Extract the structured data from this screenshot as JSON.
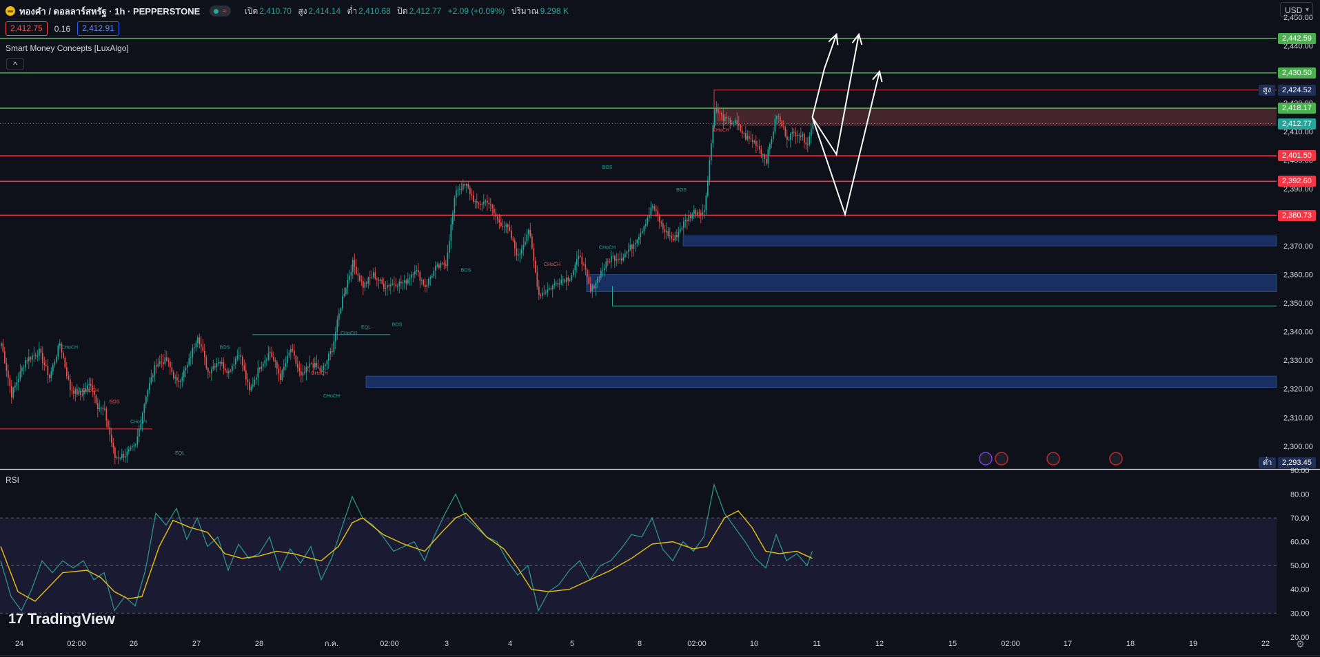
{
  "header": {
    "title": "ทองคำ / ดอลลาร์สหรัฐ · 1h · PEPPERSTONE",
    "open_label": "เปิด",
    "open": "2,410.70",
    "high_label": "สูง",
    "high": "2,414.14",
    "low_label": "ต่ำ",
    "low": "2,410.68",
    "close_label": "ปิด",
    "close": "2,412.77",
    "change": "+2.09 (+0.09%)",
    "volume_label": "ปริมาณ",
    "volume": "9.298 K",
    "wave_glyph": "≈"
  },
  "quotes": {
    "sell": "2,412.75",
    "spread": "0.16",
    "buy": "2,412.91"
  },
  "indicator_name": "Smart Money Concepts [LuxAlgo]",
  "collapse_glyph": "^",
  "rsi_label": "RSI",
  "currency": "USD",
  "brand": {
    "mark": "17",
    "name": "TradingView"
  },
  "colors": {
    "background": "#0f111a",
    "up": "#26a69a",
    "down": "#ef5350",
    "green_level": "#4caf50",
    "red_level": "#f23645",
    "rsi_line": "#2a9d8f",
    "rsi_ma": "#e8c30f",
    "zone_blue": "#1e3a7a"
  },
  "chart_data": [
    {
      "type": "candlestick",
      "title": "",
      "y_axis_ticks": [
        "2,450.00",
        "2,440.00",
        "2,430.00",
        "2,420.00",
        "2,410.00",
        "2,400.00",
        "2,390.00",
        "2,380.00",
        "2,370.00",
        "2,360.00",
        "2,350.00",
        "2,340.00",
        "2,330.00",
        "2,320.00",
        "2,310.00",
        "2,300.00"
      ],
      "y_range": [
        2292,
        2456
      ],
      "x_axis_ticks": [
        "24",
        "02:00",
        "26",
        "27",
        "28",
        "ก.ค.",
        "02:00",
        "3",
        "4",
        "5",
        "8",
        "02:00",
        "10",
        "11",
        "12",
        "15",
        "02:00",
        "17",
        "18",
        "19",
        "22"
      ],
      "key_levels": [
        {
          "price": 2442.59,
          "label": "2,442.59",
          "color": "green"
        },
        {
          "price": 2430.5,
          "label": "2,430.50",
          "color": "green"
        },
        {
          "price": 2418.17,
          "label": "2,418.17",
          "color": "green"
        },
        {
          "price": 2401.5,
          "label": "2,401.50",
          "color": "red"
        },
        {
          "price": 2392.6,
          "label": "2,392.60",
          "color": "red"
        },
        {
          "price": 2380.73,
          "label": "2,380.73",
          "color": "red"
        }
      ],
      "price_tags": {
        "high_label": "สูง",
        "high": "2,424.52",
        "last": "2,412.77",
        "low_label": "ต่ำ",
        "low": "2,293.45"
      },
      "structure_labels": [
        "CHoCH",
        "EQL",
        "CHoCH",
        "BOS",
        "CHoCH",
        "EQL",
        "BOS",
        "CHoCH",
        "CHoCH",
        "BOS",
        "CHoCH",
        "EQL",
        "BOS",
        "CHoCH",
        "CHoCH",
        "BOS",
        "BOS",
        "CHoCH"
      ],
      "demand_zones": [
        [
          2370,
          2373.5
        ],
        [
          2354,
          2360
        ],
        [
          2320.5,
          2324.5
        ]
      ],
      "pivots": [
        [
          0,
          2336
        ],
        [
          6,
          2318
        ],
        [
          14,
          2330
        ],
        [
          22,
          2333
        ],
        [
          28,
          2324
        ],
        [
          34,
          2336
        ],
        [
          40,
          2320
        ],
        [
          46,
          2318
        ],
        [
          52,
          2322
        ],
        [
          56,
          2314
        ],
        [
          60,
          2312
        ],
        [
          66,
          2296
        ],
        [
          72,
          2297
        ],
        [
          78,
          2300
        ],
        [
          84,
          2318
        ],
        [
          90,
          2329
        ],
        [
          96,
          2330
        ],
        [
          102,
          2322
        ],
        [
          108,
          2328
        ],
        [
          114,
          2339
        ],
        [
          120,
          2326
        ],
        [
          126,
          2330
        ],
        [
          132,
          2326
        ],
        [
          138,
          2333
        ],
        [
          144,
          2319
        ],
        [
          150,
          2328
        ],
        [
          156,
          2333
        ],
        [
          162,
          2324
        ],
        [
          168,
          2334
        ],
        [
          174,
          2324
        ],
        [
          180,
          2329
        ],
        [
          186,
          2326
        ],
        [
          192,
          2334
        ],
        [
          198,
          2352
        ],
        [
          204,
          2364
        ],
        [
          210,
          2356
        ],
        [
          216,
          2360
        ],
        [
          222,
          2356
        ],
        [
          228,
          2357
        ],
        [
          234,
          2357
        ],
        [
          240,
          2362
        ],
        [
          246,
          2356
        ],
        [
          252,
          2362
        ],
        [
          258,
          2364
        ],
        [
          264,
          2390
        ],
        [
          270,
          2391
        ],
        [
          276,
          2384
        ],
        [
          282,
          2386
        ],
        [
          288,
          2379
        ],
        [
          294,
          2376
        ],
        [
          300,
          2366
        ],
        [
          306,
          2376
        ],
        [
          312,
          2353
        ],
        [
          318,
          2355
        ],
        [
          324,
          2358
        ],
        [
          330,
          2359
        ],
        [
          336,
          2367
        ],
        [
          342,
          2354
        ],
        [
          348,
          2361
        ],
        [
          354,
          2366
        ],
        [
          360,
          2366
        ],
        [
          366,
          2370
        ],
        [
          372,
          2376
        ],
        [
          378,
          2384
        ],
        [
          384,
          2376
        ],
        [
          390,
          2372
        ],
        [
          396,
          2378
        ],
        [
          402,
          2382
        ],
        [
          408,
          2382
        ],
        [
          414,
          2418
        ],
        [
          420,
          2414
        ],
        [
          426,
          2413
        ],
        [
          432,
          2408
        ],
        [
          438,
          2406
        ],
        [
          444,
          2400
        ],
        [
          450,
          2416
        ],
        [
          456,
          2408
        ],
        [
          462,
          2410
        ],
        [
          468,
          2406
        ],
        [
          471,
          2412.77
        ]
      ],
      "forecast_paths": [
        [
          [
            471,
            2415
          ],
          [
            478,
            2432
          ],
          [
            485,
            2444
          ]
        ],
        [
          [
            471,
            2415
          ],
          [
            485,
            2402
          ],
          [
            498,
            2444
          ]
        ],
        [
          [
            471,
            2415
          ],
          [
            490,
            2381
          ],
          [
            510,
            2431
          ]
        ]
      ]
    },
    {
      "type": "line",
      "title": "",
      "y_axis_ticks": [
        "90.00",
        "80.00",
        "70.00",
        "60.00",
        "50.00",
        "40.00",
        "30.00",
        "20.00"
      ],
      "y_range": [
        18.5,
        90
      ],
      "bands": {
        "upper": 70,
        "middle": 50,
        "lower": 30
      },
      "series": [
        {
          "name": "",
          "points": [
            [
              0,
              52
            ],
            [
              6,
              37
            ],
            [
              12,
              31
            ],
            [
              18,
              40
            ],
            [
              24,
              52
            ],
            [
              30,
              47
            ],
            [
              36,
              52
            ],
            [
              42,
              49
            ],
            [
              48,
              52
            ],
            [
              54,
              44
            ],
            [
              60,
              47
            ],
            [
              66,
              31
            ],
            [
              72,
              37
            ],
            [
              78,
              33
            ],
            [
              84,
              48
            ],
            [
              90,
              72
            ],
            [
              96,
              67
            ],
            [
              102,
              74
            ],
            [
              108,
              61
            ],
            [
              114,
              70
            ],
            [
              120,
              58
            ],
            [
              126,
              62
            ],
            [
              132,
              48
            ],
            [
              138,
              59
            ],
            [
              144,
              53
            ],
            [
              150,
              55
            ],
            [
              156,
              62
            ],
            [
              162,
              48
            ],
            [
              168,
              57
            ],
            [
              174,
              51
            ],
            [
              180,
              58
            ],
            [
              186,
              44
            ],
            [
              192,
              53
            ],
            [
              198,
              66
            ],
            [
              204,
              79
            ],
            [
              210,
              70
            ],
            [
              216,
              67
            ],
            [
              222,
              62
            ],
            [
              228,
              56
            ],
            [
              234,
              58
            ],
            [
              240,
              60
            ],
            [
              246,
              52
            ],
            [
              252,
              63
            ],
            [
              258,
              72
            ],
            [
              264,
              80
            ],
            [
              270,
              70
            ],
            [
              276,
              66
            ],
            [
              282,
              62
            ],
            [
              288,
              60
            ],
            [
              294,
              52
            ],
            [
              300,
              46
            ],
            [
              306,
              50
            ],
            [
              312,
              31
            ],
            [
              318,
              39
            ],
            [
              324,
              42
            ],
            [
              330,
              48
            ],
            [
              336,
              52
            ],
            [
              342,
              44
            ],
            [
              348,
              50
            ],
            [
              354,
              52
            ],
            [
              360,
              57
            ],
            [
              366,
              63
            ],
            [
              372,
              62
            ],
            [
              378,
              70
            ],
            [
              384,
              57
            ],
            [
              390,
              52
            ],
            [
              396,
              60
            ],
            [
              402,
              56
            ],
            [
              408,
              62
            ],
            [
              414,
              84
            ],
            [
              420,
              72
            ],
            [
              426,
              66
            ],
            [
              432,
              60
            ],
            [
              438,
              53
            ],
            [
              444,
              49
            ],
            [
              450,
              63
            ],
            [
              456,
              52
            ],
            [
              462,
              55
            ],
            [
              468,
              50
            ],
            [
              471,
              56
            ]
          ]
        },
        {
          "name": "",
          "points": [
            [
              0,
              58
            ],
            [
              10,
              39
            ],
            [
              20,
              35
            ],
            [
              36,
              47
            ],
            [
              50,
              48
            ],
            [
              58,
              45
            ],
            [
              66,
              39
            ],
            [
              74,
              36
            ],
            [
              82,
              37
            ],
            [
              92,
              58
            ],
            [
              100,
              69
            ],
            [
              110,
              66
            ],
            [
              120,
              64
            ],
            [
              130,
              55
            ],
            [
              140,
              53
            ],
            [
              150,
              54
            ],
            [
              160,
              56
            ],
            [
              170,
              55
            ],
            [
              180,
              53
            ],
            [
              186,
              52
            ],
            [
              196,
              58
            ],
            [
              204,
              68
            ],
            [
              210,
              70
            ],
            [
              222,
              63
            ],
            [
              234,
              59
            ],
            [
              246,
              56
            ],
            [
              256,
              64
            ],
            [
              264,
              70
            ],
            [
              270,
              72
            ],
            [
              282,
              62
            ],
            [
              292,
              57
            ],
            [
              300,
              49
            ],
            [
              308,
              40
            ],
            [
              318,
              39
            ],
            [
              330,
              40
            ],
            [
              342,
              44
            ],
            [
              354,
              48
            ],
            [
              366,
              53
            ],
            [
              378,
              59
            ],
            [
              390,
              60
            ],
            [
              402,
              57
            ],
            [
              410,
              58
            ],
            [
              420,
              70
            ],
            [
              428,
              73
            ],
            [
              436,
              66
            ],
            [
              444,
              56
            ],
            [
              452,
              55
            ],
            [
              462,
              56
            ],
            [
              471,
              53
            ]
          ]
        }
      ]
    }
  ]
}
